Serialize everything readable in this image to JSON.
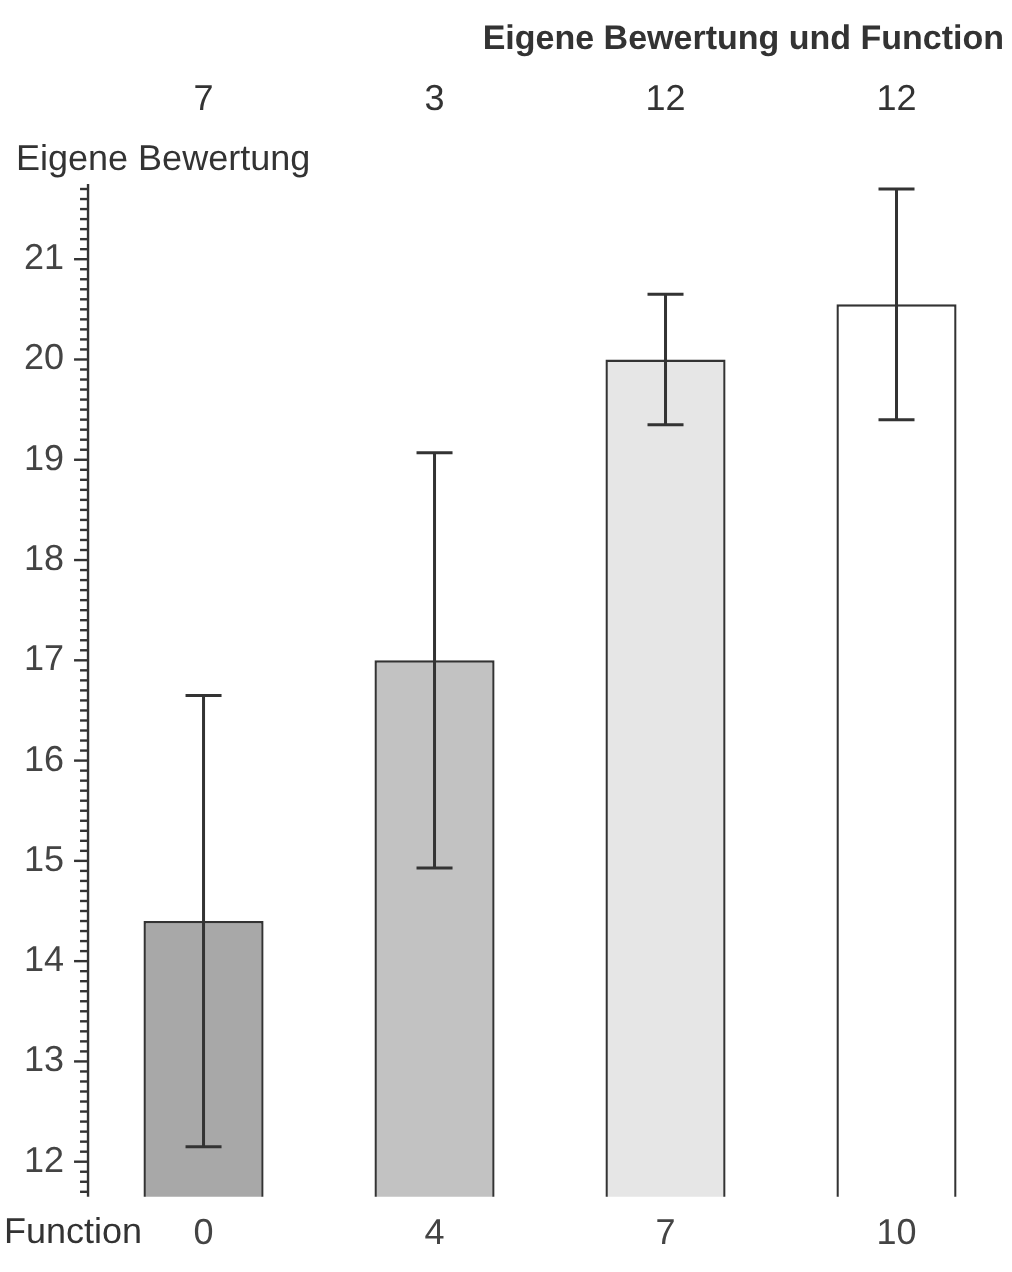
{
  "chart_data": {
    "type": "bar",
    "title": "Eigene Bewertung und Function",
    "xlabel": "Function",
    "ylabel": "Eigene Bewertung",
    "categories": [
      "0",
      "4",
      "7",
      "10"
    ],
    "values": [
      14.4,
      17.0,
      20.0,
      20.55
    ],
    "colors": [
      "#a8a8a8",
      "#c2c2c2",
      "#e6e6e6",
      "#ffffff"
    ],
    "errors": [
      2.25,
      2.07,
      0.65,
      1.15
    ],
    "annotations": [
      "7",
      "3",
      "12",
      "12"
    ],
    "ylim": [
      11.65,
      21.75
    ],
    "yticks": [
      {
        "value": 11.7,
        "label": null
      },
      {
        "value": 11.8,
        "label": null
      },
      {
        "value": 11.9,
        "label": null
      },
      12,
      {
        "value": 12.1,
        "label": null
      },
      {
        "value": 12.2,
        "label": null
      },
      {
        "value": 12.3,
        "label": null
      },
      {
        "value": 12.4,
        "label": null
      },
      {
        "value": 12.5,
        "label": null
      },
      {
        "value": 12.6,
        "label": null
      },
      {
        "value": 12.7,
        "label": null
      },
      {
        "value": 12.8,
        "label": null
      },
      {
        "value": 12.9,
        "label": null
      },
      13,
      {
        "value": 13.1,
        "label": null
      },
      {
        "value": 13.2,
        "label": null
      },
      {
        "value": 13.3,
        "label": null
      },
      {
        "value": 13.4,
        "label": null
      },
      {
        "value": 13.5,
        "label": null
      },
      {
        "value": 13.6,
        "label": null
      },
      {
        "value": 13.7,
        "label": null
      },
      {
        "value": 13.8,
        "label": null
      },
      {
        "value": 13.9,
        "label": null
      },
      14,
      {
        "value": 14.1,
        "label": null
      },
      {
        "value": 14.2,
        "label": null
      },
      {
        "value": 14.3,
        "label": null
      },
      {
        "value": 14.4,
        "label": null
      },
      {
        "value": 14.5,
        "label": null
      },
      {
        "value": 14.6,
        "label": null
      },
      {
        "value": 14.7,
        "label": null
      },
      {
        "value": 14.8,
        "label": null
      },
      {
        "value": 14.9,
        "label": null
      },
      15,
      {
        "value": 15.1,
        "label": null
      },
      {
        "value": 15.2,
        "label": null
      },
      {
        "value": 15.3,
        "label": null
      },
      {
        "value": 15.4,
        "label": null
      },
      {
        "value": 15.5,
        "label": null
      },
      {
        "value": 15.6,
        "label": null
      },
      {
        "value": 15.7,
        "label": null
      },
      {
        "value": 15.8,
        "label": null
      },
      {
        "value": 15.9,
        "label": null
      },
      16,
      {
        "value": 16.1,
        "label": null
      },
      {
        "value": 16.2,
        "label": null
      },
      {
        "value": 16.3,
        "label": null
      },
      {
        "value": 16.4,
        "label": null
      },
      {
        "value": 16.5,
        "label": null
      },
      {
        "value": 16.6,
        "label": null
      },
      {
        "value": 16.7,
        "label": null
      },
      {
        "value": 16.8,
        "label": null
      },
      {
        "value": 16.9,
        "label": null
      },
      17,
      {
        "value": 17.1,
        "label": null
      },
      {
        "value": 17.2,
        "label": null
      },
      {
        "value": 17.3,
        "label": null
      },
      {
        "value": 17.4,
        "label": null
      },
      {
        "value": 17.5,
        "label": null
      },
      {
        "value": 17.6,
        "label": null
      },
      {
        "value": 17.7,
        "label": null
      },
      {
        "value": 17.8,
        "label": null
      },
      {
        "value": 17.9,
        "label": null
      },
      18,
      {
        "value": 18.1,
        "label": null
      },
      {
        "value": 18.2,
        "label": null
      },
      {
        "value": 18.3,
        "label": null
      },
      {
        "value": 18.4,
        "label": null
      },
      {
        "value": 18.5,
        "label": null
      },
      {
        "value": 18.6,
        "label": null
      },
      {
        "value": 18.7,
        "label": null
      },
      {
        "value": 18.8,
        "label": null
      },
      {
        "value": 18.9,
        "label": null
      },
      19,
      {
        "value": 19.1,
        "label": null
      },
      {
        "value": 19.2,
        "label": null
      },
      {
        "value": 19.3,
        "label": null
      },
      {
        "value": 19.4,
        "label": null
      },
      {
        "value": 19.5,
        "label": null
      },
      {
        "value": 19.6,
        "label": null
      },
      {
        "value": 19.7,
        "label": null
      },
      {
        "value": 19.8,
        "label": null
      },
      {
        "value": 19.9,
        "label": null
      },
      20,
      {
        "value": 20.1,
        "label": null
      },
      {
        "value": 20.2,
        "label": null
      },
      {
        "value": 20.3,
        "label": null
      },
      {
        "value": 20.4,
        "label": null
      },
      {
        "value": 20.5,
        "label": null
      },
      {
        "value": 20.6,
        "label": null
      },
      {
        "value": 20.7,
        "label": null
      },
      {
        "value": 20.8,
        "label": null
      },
      {
        "value": 20.9,
        "label": null
      },
      21,
      {
        "value": 21.1,
        "label": null
      },
      {
        "value": 21.2,
        "label": null
      },
      {
        "value": 21.3,
        "label": null
      },
      {
        "value": 21.4,
        "label": null
      },
      {
        "value": 21.5,
        "label": null
      },
      {
        "value": 21.6,
        "label": null
      },
      {
        "value": 21.7,
        "label": null
      }
    ],
    "grid": false,
    "legend": false
  }
}
